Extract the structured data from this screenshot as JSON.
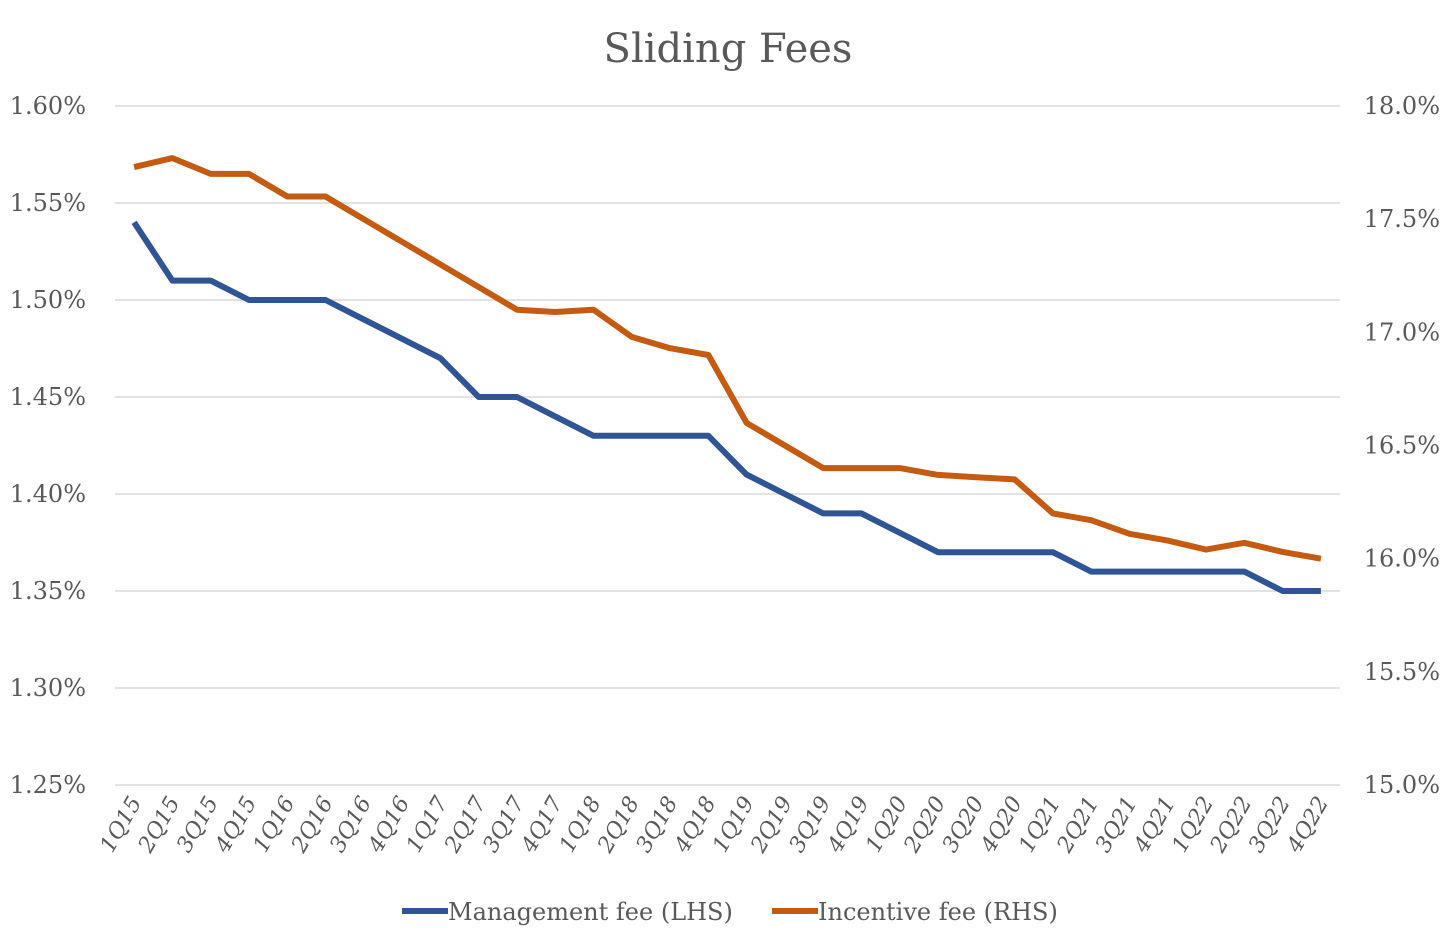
{
  "chart_data": {
    "type": "line",
    "title": "Sliding Fees",
    "xlabel": "",
    "ylabel": "",
    "categories": [
      "1Q15",
      "2Q15",
      "3Q15",
      "4Q15",
      "1Q16",
      "2Q16",
      "3Q16",
      "4Q16",
      "1Q17",
      "2Q17",
      "3Q17",
      "4Q17",
      "1Q18",
      "2Q18",
      "3Q18",
      "4Q18",
      "1Q19",
      "2Q19",
      "3Q19",
      "4Q19",
      "1Q20",
      "2Q20",
      "3Q20",
      "4Q20",
      "1Q21",
      "2Q21",
      "3Q21",
      "4Q21",
      "1Q22",
      "2Q22",
      "3Q22",
      "4Q22"
    ],
    "y_left": {
      "ylim": [
        1.25,
        1.6
      ],
      "ticks": [
        1.25,
        1.3,
        1.35,
        1.4,
        1.45,
        1.5,
        1.55,
        1.6
      ],
      "tick_labels": [
        "1.25%",
        "1.30%",
        "1.35%",
        "1.40%",
        "1.45%",
        "1.50%",
        "1.55%",
        "1.60%"
      ]
    },
    "y_right": {
      "ylim": [
        15.0,
        18.0
      ],
      "ticks": [
        15.0,
        15.5,
        16.0,
        16.5,
        17.0,
        17.5,
        18.0
      ],
      "tick_labels": [
        "15.0%",
        "15.5%",
        "16.0%",
        "16.5%",
        "17.0%",
        "17.5%",
        "18.0%"
      ]
    },
    "grid": true,
    "legend_position": "bottom",
    "series": [
      {
        "name": "Management fee (LHS)",
        "axis": "left",
        "color": "#2F5597",
        "values": [
          1.54,
          1.51,
          1.51,
          1.5,
          1.5,
          1.5,
          1.49,
          1.48,
          1.47,
          1.45,
          1.45,
          1.44,
          1.43,
          1.43,
          1.43,
          1.43,
          1.41,
          1.4,
          1.39,
          1.39,
          1.38,
          1.37,
          1.37,
          1.37,
          1.37,
          1.36,
          1.36,
          1.36,
          1.36,
          1.36,
          1.35,
          1.35
        ]
      },
      {
        "name": "Incentive fee (RHS)",
        "axis": "right",
        "color": "#C55A11",
        "values": [
          17.73,
          17.77,
          17.7,
          17.7,
          17.6,
          17.6,
          17.5,
          17.4,
          17.3,
          17.2,
          17.1,
          17.09,
          17.1,
          16.98,
          16.93,
          16.9,
          16.6,
          16.5,
          16.4,
          16.4,
          16.4,
          16.37,
          16.36,
          16.35,
          16.2,
          16.17,
          16.11,
          16.08,
          16.04,
          16.07,
          16.03,
          16.0
        ]
      }
    ]
  }
}
